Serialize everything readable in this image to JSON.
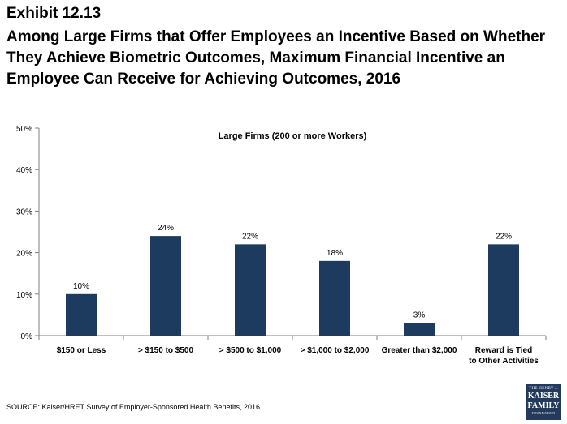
{
  "header": {
    "exhibit": "Exhibit 12.13",
    "title": "Among Large Firms that Offer Employees an Incentive Based on Whether They Achieve Biometric Outcomes, Maximum Financial Incentive an Employee Can Receive for Achieving Outcomes, 2016"
  },
  "footer": {
    "source": "SOURCE: Kaiser/HRET Survey of Employer-Sponsored Health Benefits, 2016."
  },
  "logo": {
    "line1": "THE HENRY J.",
    "line2": "KAISER",
    "line3": "FAMILY",
    "line4": "FOUNDATION"
  },
  "chart_data": {
    "type": "bar",
    "title": "Large Firms (200 or more Workers)",
    "xlabel": "",
    "ylabel": "",
    "categories": [
      "$150 or Less",
      "> $150 to $500",
      "> $500 to $1,000",
      "> $1,000 to $2,000",
      "Greater than $2,000",
      "Reward is Tied to Other Activities"
    ],
    "values": [
      10,
      24,
      22,
      18,
      3,
      22
    ],
    "value_labels": [
      "10%",
      "24%",
      "22%",
      "18%",
      "3%",
      "22%"
    ],
    "ylim": [
      0,
      50
    ],
    "yticks": [
      0,
      10,
      20,
      30,
      40,
      50
    ],
    "ytick_labels": [
      "0%",
      "10%",
      "20%",
      "30%",
      "40%",
      "50%"
    ],
    "grid": false,
    "legend": "none",
    "bar_color": "#1d3a5f"
  }
}
